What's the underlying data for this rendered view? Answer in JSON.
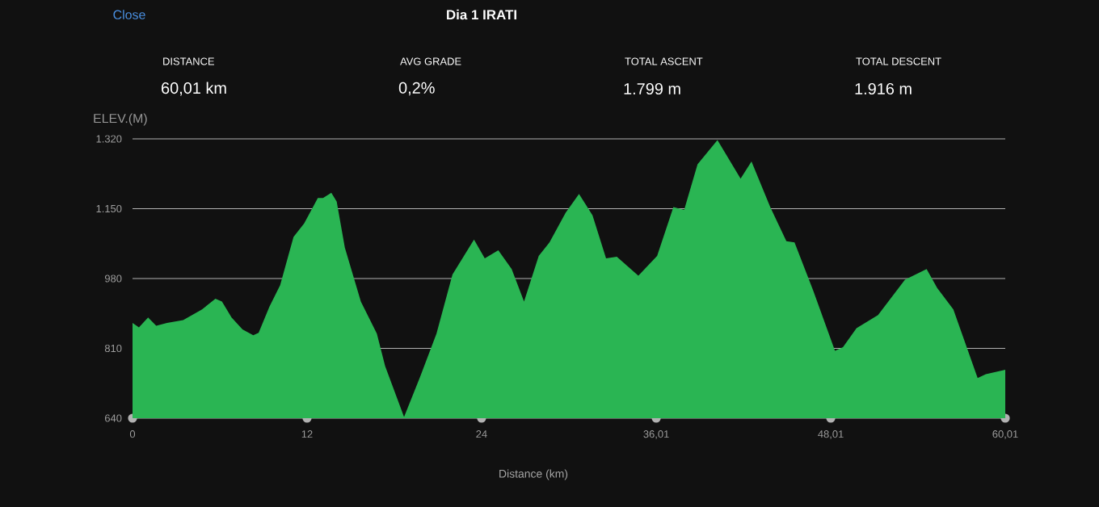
{
  "chart_data": {
    "type": "area",
    "title": "Dia 1 IRATI",
    "xlabel": "Distance (km)",
    "ylabel": "ELEV.(M)",
    "annotations": [
      "Close",
      "DISTANCE",
      "60,01 km",
      "AVG GRADE",
      "0,2%",
      "TOTAL ASCENT",
      "1.799 m",
      "TOTAL DESCENT",
      "1.916 m"
    ],
    "x": [
      0,
      0.44,
      1.07,
      1.63,
      2.37,
      3.48,
      4.78,
      5.7,
      6.15,
      6.81,
      7.56,
      8.3,
      8.67,
      9.41,
      10.15,
      11.07,
      11.8,
      12.74,
      13.1,
      13.67,
      14.04,
      14.6,
      15.7,
      16.8,
      17.37,
      18.67,
      19.78,
      20.9,
      22.0,
      23.48,
      24.22,
      25.15,
      26.07,
      26.92,
      27.93,
      28.67,
      29.78,
      30.7,
      31.63,
      32.56,
      33.3,
      34.78,
      36.07,
      37.19,
      37.93,
      38.85,
      40.22,
      41.81,
      42.56,
      43.85,
      44.96,
      45.52,
      46.81,
      48.3,
      48.85,
      49.78,
      51.26,
      53.11,
      54.6,
      55.33,
      56.44,
      58.11,
      58.67,
      60.01
    ],
    "values": [
      872,
      861,
      885,
      865,
      872,
      879,
      905,
      931,
      924,
      885,
      856,
      842,
      848,
      911,
      964,
      1081,
      1114,
      1176,
      1176,
      1189,
      1167,
      1055,
      924,
      846,
      767,
      643,
      741,
      846,
      990,
      1075,
      1029,
      1049,
      1003,
      924,
      1035,
      1068,
      1140,
      1186,
      1134,
      1029,
      1033,
      987,
      1035,
      1154,
      1147,
      1258,
      1317,
      1223,
      1265,
      1154,
      1071,
      1068,
      950,
      804,
      813,
      859,
      891,
      977,
      1003,
      957,
      905,
      738,
      747,
      758
    ],
    "color": "#2ab553",
    "xlim": [
      0,
      60.01
    ],
    "ylim": [
      640,
      1320
    ],
    "xticks": [
      0,
      12,
      24,
      {
        "value": 36.01,
        "label": "36,01"
      },
      {
        "value": 48.01,
        "label": "48,01"
      },
      {
        "value": 60.01,
        "label": "60,01"
      }
    ],
    "yticks": [
      {
        "value": 640,
        "label": "640"
      },
      {
        "value": 810,
        "label": "810"
      },
      {
        "value": 980,
        "label": "980"
      },
      {
        "value": 1150,
        "label": "1.150"
      },
      {
        "value": 1320,
        "label": "1.320"
      }
    ],
    "grid": "y"
  }
}
